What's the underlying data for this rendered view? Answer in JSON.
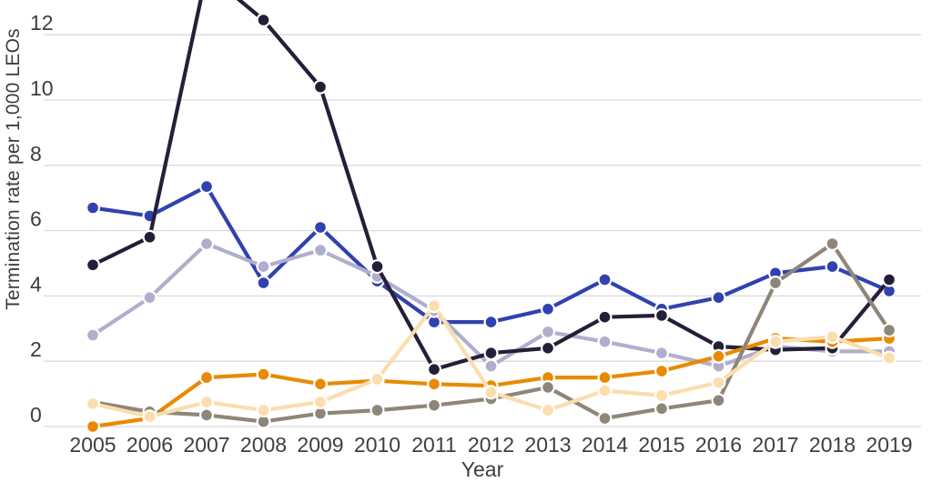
{
  "colors": {
    "background": "#ffffff",
    "grid": "#d9d9d9",
    "text": "#3e3e3e"
  },
  "chart_data": {
    "type": "line",
    "title": "",
    "xlabel": "Year",
    "ylabel": "Termination rate per 1,000 LEOs",
    "x": [
      2005,
      2006,
      2007,
      2008,
      2009,
      2010,
      2011,
      2012,
      2013,
      2014,
      2015,
      2016,
      2017,
      2018,
      2019
    ],
    "x_tick_labels": [
      "2005",
      "2006",
      "2007",
      "2008",
      "2009",
      "2010",
      "2011",
      "2012",
      "2013",
      "2014",
      "2015",
      "2016",
      "2017",
      "2018",
      "2019"
    ],
    "y_ticks": [
      0,
      2,
      4,
      6,
      8,
      10,
      12
    ],
    "y_tick_labels": [
      "0",
      "2",
      "4",
      "6",
      "8",
      "10",
      "12"
    ],
    "ylim_visible": [
      -0.4,
      13.05
    ],
    "grid": "horizontal",
    "legend": "none",
    "note": "top of chart is cropped; dark-navy 2007 peak extends above visible area",
    "marker": {
      "radius": 6.9,
      "edge_color": "#ffffff",
      "edge_width": 2.2
    },
    "line_width": 4.2,
    "series": [
      {
        "name": "royal-blue",
        "color": "#3142af",
        "values": [
          6.7,
          6.45,
          7.35,
          4.4,
          6.1,
          4.45,
          3.2,
          3.2,
          3.6,
          4.5,
          3.6,
          3.95,
          4.7,
          4.9,
          4.15
        ]
      },
      {
        "name": "lavender",
        "color": "#b1aecd",
        "values": [
          2.8,
          3.95,
          5.6,
          4.9,
          5.4,
          4.6,
          3.55,
          1.85,
          2.9,
          2.6,
          2.25,
          1.85,
          2.45,
          2.3,
          2.3
        ]
      },
      {
        "name": "dark-navy",
        "color": "#241f39",
        "values": [
          4.95,
          5.8,
          13.9,
          12.45,
          10.4,
          4.9,
          1.75,
          2.25,
          2.4,
          3.35,
          3.4,
          2.45,
          2.35,
          2.4,
          4.5
        ]
      },
      {
        "name": "orange",
        "color": "#e98a02",
        "values": [
          0.0,
          0.25,
          1.5,
          1.6,
          1.3,
          1.4,
          1.3,
          1.25,
          1.5,
          1.5,
          1.7,
          2.15,
          2.7,
          2.6,
          2.7
        ]
      },
      {
        "name": "warm-gray",
        "color": "#8e8679",
        "values": [
          0.75,
          0.45,
          0.35,
          0.15,
          0.4,
          0.5,
          0.65,
          0.85,
          1.2,
          0.25,
          0.55,
          0.8,
          4.4,
          5.6,
          2.95
        ]
      },
      {
        "name": "peach",
        "color": "#fbddae",
        "values": [
          0.7,
          0.3,
          0.75,
          0.5,
          0.75,
          1.45,
          3.7,
          1.05,
          0.5,
          1.1,
          0.95,
          1.35,
          2.6,
          2.75,
          2.1
        ]
      }
    ]
  }
}
